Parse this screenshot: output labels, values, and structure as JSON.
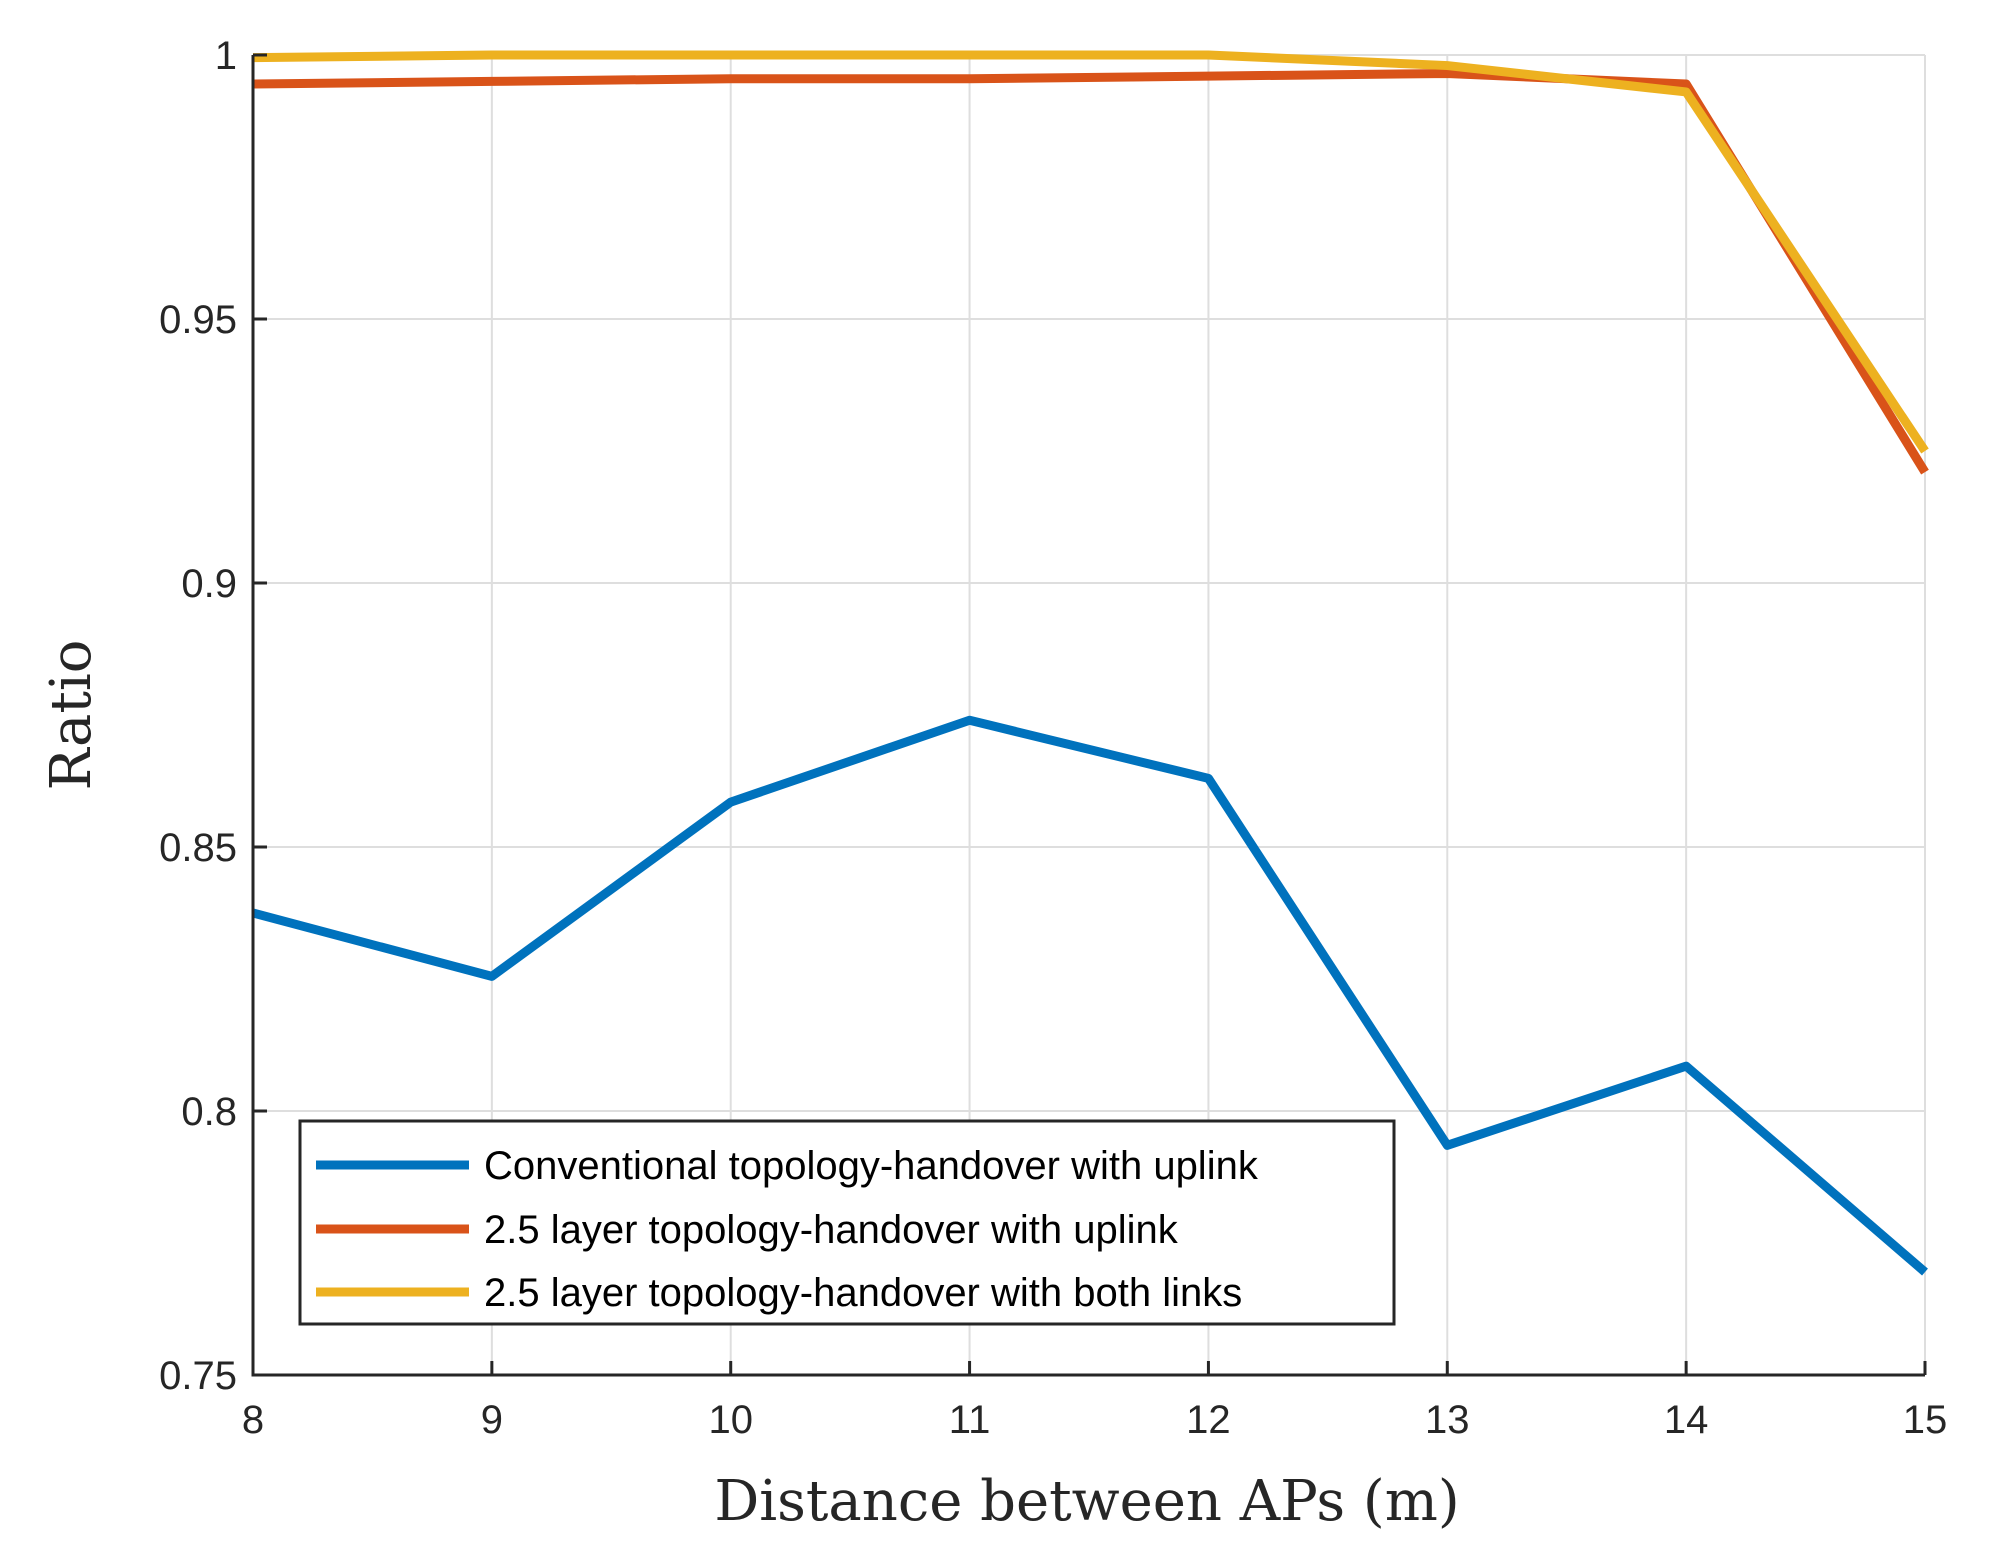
{
  "chart_data": {
    "type": "line",
    "title": "",
    "xlabel": "Distance between APs (m)",
    "ylabel": "Ratio",
    "x": [
      8,
      9,
      10,
      11,
      12,
      13,
      14,
      15
    ],
    "xlim": [
      8,
      15
    ],
    "ylim": [
      0.75,
      1
    ],
    "xticks": [
      8,
      9,
      10,
      11,
      12,
      13,
      14,
      15
    ],
    "yticks": [
      0.75,
      0.8,
      0.85,
      0.9,
      0.95,
      1
    ],
    "ytick_labels": [
      "0.75",
      "0.8",
      "0.85",
      "0.9",
      "0.95",
      "1"
    ],
    "grid": true,
    "legend_position": "bottom-left",
    "series": [
      {
        "name": "Conventional topology-handover with uplink",
        "color": "#0072BD",
        "values": [
          0.8375,
          0.8255,
          0.8585,
          0.874,
          0.863,
          0.7935,
          0.8085,
          0.7695
        ]
      },
      {
        "name": "2.5 layer topology-handover with uplink",
        "color": "#D95319",
        "values": [
          0.9945,
          0.995,
          0.9955,
          0.9955,
          0.996,
          0.9965,
          0.9945,
          0.921
        ]
      },
      {
        "name": "2.5 layer topology-handover with both links",
        "color": "#EDB120",
        "values": [
          0.9995,
          1.0,
          1.0,
          1.0,
          1.0,
          0.998,
          0.993,
          0.925
        ]
      }
    ]
  }
}
